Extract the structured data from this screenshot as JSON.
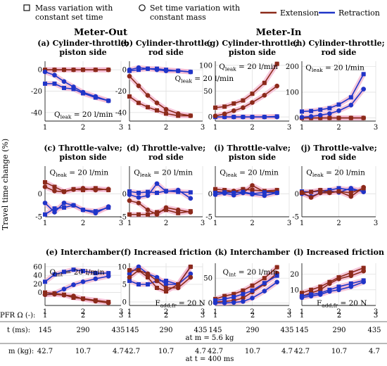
{
  "legend": {
    "mass_variation": "Mass variation with constant set time",
    "mass_variation_line1": "Mass variation with",
    "mass_variation_line2": "constant set time",
    "time_variation": "Set time variation with constant mass",
    "time_variation_line1": "Set time variation with",
    "time_variation_line2": "constant mass",
    "extension": "Extension",
    "retraction": "Retraction",
    "extension_color": "#8b2a1a",
    "retraction_color": "#1f35c8",
    "highlight_color": "#f3b6cf"
  },
  "group_titles": {
    "meter_out": "Meter-Out",
    "meter_in": "Meter-In"
  },
  "y_axis_label": "Travel time change (%)",
  "bottom_axis": {
    "pfr_label": "PFR Ω (-):",
    "pfr_ticks": [
      "1",
      "2",
      "3"
    ],
    "t_label": "t (ms):",
    "t_ticks": [
      "145",
      "290",
      "435"
    ],
    "t_note": "at m = 5.6 kg",
    "m_label": "m (kg):",
    "m_ticks": [
      "42.7",
      "10.7",
      "4.7"
    ],
    "m_note": "at t = 400 ms"
  },
  "chart_data": [
    {
      "id": "a",
      "type": "line",
      "title_line1": "(a) Cylinder-throttle;",
      "title_line2": "piston side",
      "annotation": "Q_leak = 20 l/min",
      "x": [
        1,
        1.25,
        1.5,
        1.75,
        2,
        2.33,
        2.67
      ],
      "xlim": [
        1,
        3
      ],
      "xticks": [
        1,
        2,
        3
      ],
      "ylim": [
        -48,
        8
      ],
      "yticks": [
        0,
        -20,
        -40
      ],
      "series": [
        {
          "name": "Extension",
          "variation": "mass",
          "values": [
            0,
            0,
            0,
            0,
            0,
            0,
            0
          ]
        },
        {
          "name": "Extension",
          "variation": "time",
          "values": [
            0,
            0,
            0,
            0,
            0,
            0,
            0
          ]
        },
        {
          "name": "Retraction",
          "variation": "mass",
          "values": [
            -13,
            -13,
            -17,
            -18,
            -22,
            -26,
            -29
          ]
        },
        {
          "name": "Retraction",
          "variation": "time",
          "values": [
            -2,
            -5,
            -11,
            -16,
            -21,
            -25,
            -29
          ]
        }
      ]
    },
    {
      "id": "b",
      "type": "line",
      "title_line1": "(b) Cylinder-throttle;",
      "title_line2": "rod side",
      "annotation": "Q_leak = 20 l/min",
      "x": [
        1,
        1.25,
        1.5,
        1.75,
        2,
        2.33,
        2.67
      ],
      "xlim": [
        1,
        3
      ],
      "xticks": [
        1,
        2,
        3
      ],
      "ylim": [
        -48,
        8
      ],
      "yticks": [
        0,
        -20,
        -40
      ],
      "series": [
        {
          "name": "Retraction",
          "variation": "mass",
          "values": [
            -1,
            0,
            1,
            1,
            0,
            -1,
            -2
          ]
        },
        {
          "name": "Retraction",
          "variation": "time",
          "values": [
            0,
            2,
            1,
            0,
            -1,
            -1,
            -2
          ]
        },
        {
          "name": "Extension",
          "variation": "mass",
          "values": [
            -25,
            -31,
            -35,
            -38,
            -41,
            -43,
            -43
          ]
        },
        {
          "name": "Extension",
          "variation": "time",
          "values": [
            -6,
            -15,
            -24,
            -31,
            -37,
            -41,
            -43
          ]
        }
      ]
    },
    {
      "id": "g",
      "type": "line",
      "title_line1": "(g) Cylinder-throttle;",
      "title_line2": "piston side",
      "annotation": "Q_leak = 20 l/min",
      "x": [
        1,
        1.25,
        1.5,
        1.75,
        2,
        2.33,
        2.67
      ],
      "xlim": [
        1,
        3
      ],
      "xticks": [
        1,
        2,
        3
      ],
      "ylim": [
        -8,
        108
      ],
      "yticks": [
        0,
        50,
        100
      ],
      "series": [
        {
          "name": "Retraction",
          "variation": "mass",
          "values": [
            0,
            0,
            0,
            0,
            0,
            0,
            1
          ]
        },
        {
          "name": "Retraction",
          "variation": "time",
          "values": [
            0,
            0,
            0,
            0,
            0,
            0,
            0
          ]
        },
        {
          "name": "Extension",
          "variation": "mass",
          "values": [
            18,
            20,
            26,
            32,
            45,
            66,
            103
          ]
        },
        {
          "name": "Extension",
          "variation": "time",
          "values": [
            2,
            6,
            12,
            18,
            28,
            42,
            60
          ]
        }
      ]
    },
    {
      "id": "h",
      "type": "line",
      "title_line1": "(h) Cylinder-throttle;",
      "title_line2": "rod side",
      "annotation": "Q_leak = 20 l/min",
      "x": [
        1,
        1.25,
        1.5,
        1.75,
        2,
        2.33,
        2.67
      ],
      "xlim": [
        1,
        3
      ],
      "xticks": [
        1,
        2,
        3
      ],
      "ylim": [
        -12,
        220
      ],
      "yticks": [
        0,
        100,
        200
      ],
      "series": [
        {
          "name": "Extension",
          "variation": "mass",
          "values": [
            0,
            0,
            0,
            0,
            0,
            0,
            0
          ]
        },
        {
          "name": "Extension",
          "variation": "time",
          "values": [
            0,
            0,
            0,
            0,
            0,
            0,
            0
          ]
        },
        {
          "name": "Retraction",
          "variation": "mass",
          "values": [
            25,
            27,
            32,
            38,
            52,
            80,
            170
          ]
        },
        {
          "name": "Retraction",
          "variation": "time",
          "values": [
            3,
            6,
            11,
            17,
            28,
            50,
            112
          ]
        }
      ]
    },
    {
      "id": "c",
      "type": "line",
      "title_line1": "(c) Throttle-valve;",
      "title_line2": "piston side",
      "annotation": "Q_leak = 20 l/min",
      "x": [
        1,
        1.25,
        1.5,
        1.75,
        2,
        2.33,
        2.67
      ],
      "xlim": [
        1,
        3
      ],
      "xticks": [
        1,
        2,
        3
      ],
      "ylim": [
        -5,
        6
      ],
      "yticks": [
        0,
        -5
      ],
      "series": [
        {
          "name": "Extension",
          "variation": "mass",
          "values": [
            2.5,
            1.5,
            0.5,
            1,
            0.8,
            1.2,
            0.8
          ]
        },
        {
          "name": "Extension",
          "variation": "time",
          "values": [
            1.5,
            0.6,
            0.4,
            0.9,
            1.2,
            0.8,
            1.0
          ]
        },
        {
          "name": "Retraction",
          "variation": "mass",
          "values": [
            -4.5,
            -3.2,
            -3.0,
            -2.5,
            -3.5,
            -3.8,
            -3.0
          ]
        },
        {
          "name": "Retraction",
          "variation": "time",
          "values": [
            -2.0,
            -4.0,
            -2.0,
            -2.5,
            -3.5,
            -4.2,
            -2.8
          ]
        }
      ]
    },
    {
      "id": "d",
      "type": "line",
      "title_line1": "(d) Throttle-valve;",
      "title_line2": "rod side",
      "annotation": "Q_leak = 20 l/min",
      "x": [
        1,
        1.25,
        1.5,
        1.75,
        2,
        2.33,
        2.67
      ],
      "xlim": [
        1,
        3
      ],
      "xticks": [
        1,
        2,
        3
      ],
      "ylim": [
        -5,
        6
      ],
      "yticks": [
        0,
        -5
      ],
      "series": [
        {
          "name": "Retraction",
          "variation": "mass",
          "values": [
            0.5,
            0.2,
            0.4,
            0.2,
            0.6,
            0.4,
            0.3
          ]
        },
        {
          "name": "Retraction",
          "variation": "time",
          "values": [
            -0.2,
            -0.8,
            -0.4,
            2.2,
            0.5,
            0.8,
            -1.0
          ]
        },
        {
          "name": "Extension",
          "variation": "mass",
          "values": [
            -4.5,
            -4.5,
            -4.5,
            -4.0,
            -3.5,
            -4.2,
            -3.8
          ]
        },
        {
          "name": "Extension",
          "variation": "time",
          "values": [
            -1.5,
            -2.0,
            -3.5,
            -4.5,
            -3.0,
            -3.5,
            -4.0
          ]
        }
      ]
    },
    {
      "id": "i",
      "type": "line",
      "title_line1": "(i) Throttle-valve;",
      "title_line2": "piston side",
      "annotation": "Q_leak = 20 l/min",
      "x": [
        1,
        1.25,
        1.5,
        1.75,
        2,
        2.33,
        2.67
      ],
      "xlim": [
        1,
        3
      ],
      "xticks": [
        1,
        2,
        3
      ],
      "ylim": [
        -5,
        6
      ],
      "yticks": [
        0,
        -5
      ],
      "series": [
        {
          "name": "Extension",
          "variation": "mass",
          "values": [
            1.0,
            0.8,
            0.5,
            1.0,
            0.8,
            0.6,
            0.8
          ]
        },
        {
          "name": "Extension",
          "variation": "time",
          "values": [
            0.5,
            0.3,
            0.6,
            0.2,
            1.8,
            0.4,
            0.5
          ]
        },
        {
          "name": "Retraction",
          "variation": "mass",
          "values": [
            0.2,
            0.3,
            0.2,
            0.4,
            0.0,
            0.3,
            0.2
          ]
        },
        {
          "name": "Retraction",
          "variation": "time",
          "values": [
            -0.2,
            0.1,
            -0.3,
            0.2,
            -0.1,
            -0.4,
            0.2
          ]
        }
      ]
    },
    {
      "id": "j",
      "type": "line",
      "title_line1": "(j) Throttle-valve;",
      "title_line2": "rod side",
      "annotation": "Q_leak = 20 l/min",
      "x": [
        1,
        1.25,
        1.5,
        1.75,
        2,
        2.33,
        2.67
      ],
      "xlim": [
        1,
        3
      ],
      "xticks": [
        1,
        2,
        3
      ],
      "ylim": [
        -5,
        6
      ],
      "yticks": [
        0,
        -5
      ],
      "series": [
        {
          "name": "Retraction",
          "variation": "mass",
          "values": [
            0.5,
            0.4,
            0.6,
            0.8,
            1.2,
            0.8,
            0.6
          ]
        },
        {
          "name": "Retraction",
          "variation": "time",
          "values": [
            0.0,
            -0.6,
            0.2,
            0.6,
            0.3,
            1.2,
            0.4
          ]
        },
        {
          "name": "Extension",
          "variation": "mass",
          "values": [
            0.2,
            0.4,
            0.8,
            0.3,
            0.5,
            0.2,
            1.2
          ]
        },
        {
          "name": "Extension",
          "variation": "time",
          "values": [
            0.3,
            -0.8,
            0.2,
            0.2,
            0.5,
            -0.6,
            1.4
          ]
        }
      ]
    },
    {
      "id": "e",
      "type": "line",
      "title_line1": "(e) Interchamber",
      "title_line2": "",
      "annotation": "Q_int = 20 l/min",
      "x": [
        1,
        1.25,
        1.5,
        1.75,
        2,
        2.33,
        2.67
      ],
      "xlim": [
        1,
        3
      ],
      "xticks": [
        1,
        2,
        3
      ],
      "ylim": [
        -30,
        68
      ],
      "yticks": [
        0,
        20,
        40,
        60
      ],
      "series": [
        {
          "name": "Retraction",
          "variation": "mass",
          "values": [
            25,
            42,
            48,
            53,
            50,
            45,
            45
          ]
        },
        {
          "name": "Retraction",
          "variation": "time",
          "values": [
            -5,
            -2,
            8,
            18,
            25,
            32,
            38
          ]
        },
        {
          "name": "Extension",
          "variation": "mass",
          "values": [
            0,
            -2,
            -5,
            -12,
            -14,
            -18,
            -22
          ]
        },
        {
          "name": "Extension",
          "variation": "time",
          "values": [
            -5,
            -4,
            -6,
            -8,
            -15,
            -20,
            -24
          ]
        }
      ]
    },
    {
      "id": "f",
      "type": "line",
      "title_line1": "(f) Increased friction",
      "title_line2": "",
      "annotation": "F_add,fr = 20 N",
      "x": [
        1,
        1.25,
        1.5,
        1.75,
        2,
        2.33,
        2.67
      ],
      "xlim": [
        1,
        3
      ],
      "xticks": [
        1,
        2,
        3
      ],
      "ylim": [
        -1,
        11
      ],
      "yticks": [
        0,
        5,
        10
      ],
      "series": [
        {
          "name": "Retraction",
          "variation": "mass",
          "values": [
            6,
            5,
            5,
            6,
            6,
            5,
            10
          ]
        },
        {
          "name": "Retraction",
          "variation": "time",
          "values": [
            8,
            10,
            8,
            7,
            5,
            5,
            8
          ]
        },
        {
          "name": "Extension",
          "variation": "mass",
          "values": [
            9,
            9,
            7,
            4,
            3,
            5,
            10
          ]
        },
        {
          "name": "Extension",
          "variation": "time",
          "values": [
            7,
            9,
            8,
            6,
            4,
            4,
            7
          ]
        }
      ]
    },
    {
      "id": "k",
      "type": "line",
      "title_line1": "(k) Interchamber",
      "title_line2": "",
      "annotation": "Q_int = 20 l/min",
      "x": [
        1,
        1.25,
        1.5,
        1.75,
        2,
        2.33,
        2.67
      ],
      "xlim": [
        1,
        3
      ],
      "xticks": [
        1,
        2,
        3
      ],
      "ylim": [
        -5,
        80
      ],
      "yticks": [
        0,
        50
      ],
      "series": [
        {
          "name": "Extension",
          "variation": "mass",
          "values": [
            8,
            14,
            18,
            25,
            35,
            50,
            72
          ]
        },
        {
          "name": "Extension",
          "variation": "time",
          "values": [
            2,
            3,
            5,
            10,
            22,
            38,
            60
          ]
        },
        {
          "name": "Retraction",
          "variation": "mass",
          "values": [
            5,
            8,
            12,
            18,
            25,
            40,
            55
          ]
        },
        {
          "name": "Retraction",
          "variation": "time",
          "values": [
            0,
            0,
            1,
            3,
            10,
            24,
            42
          ]
        }
      ]
    },
    {
      "id": "l",
      "type": "line",
      "title_line1": "(l) Increased friction",
      "title_line2": "",
      "annotation": "F_add,fr = 20 N",
      "x": [
        1,
        1.25,
        1.5,
        1.75,
        2,
        2.33,
        2.67
      ],
      "xlim": [
        1,
        3
      ],
      "xticks": [
        1,
        2,
        3
      ],
      "ylim": [
        0,
        27
      ],
      "yticks": [
        10,
        20
      ],
      "series": [
        {
          "name": "Extension",
          "variation": "mass",
          "values": [
            8,
            10,
            12,
            15,
            18,
            21,
            24
          ]
        },
        {
          "name": "Extension",
          "variation": "time",
          "values": [
            6,
            8,
            10,
            14,
            17,
            19,
            22
          ]
        },
        {
          "name": "Retraction",
          "variation": "mass",
          "values": [
            6,
            7,
            8,
            10,
            12,
            14,
            16
          ]
        },
        {
          "name": "Retraction",
          "variation": "time",
          "values": [
            5,
            6,
            7,
            9,
            10,
            12,
            15
          ]
        }
      ]
    }
  ]
}
